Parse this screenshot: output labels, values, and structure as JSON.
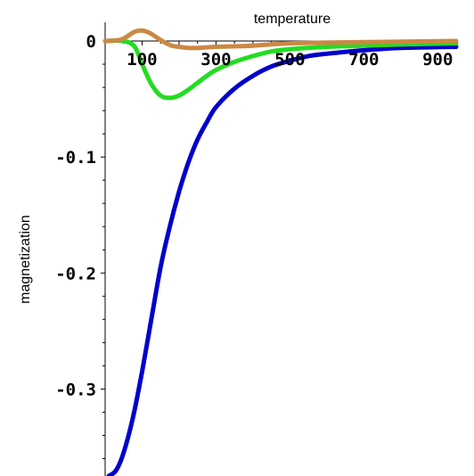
{
  "chart_data": {
    "type": "line",
    "title": "",
    "xlabel": "temperature",
    "ylabel": "magnetization",
    "xlim": [
      0,
      950
    ],
    "ylim": [
      -0.375,
      0.01
    ],
    "grid": false,
    "legend": "none",
    "x_ticks": [
      100,
      300,
      500,
      700,
      900
    ],
    "x_tick_labels": [
      "100",
      "300",
      "500",
      "700",
      "900"
    ],
    "y_ticks": [
      0,
      -0.1,
      -0.2,
      -0.3
    ],
    "y_tick_labels": [
      "0",
      "-0.1",
      "-0.2",
      "-0.3"
    ],
    "series": [
      {
        "color": "#0000cc",
        "x": [
          10,
          30,
          50,
          75,
          100,
          125,
          150,
          175,
          200,
          225,
          250,
          275,
          300,
          350,
          400,
          450,
          500,
          550,
          600,
          700,
          800,
          950
        ],
        "y": [
          -0.375,
          -0.37,
          -0.355,
          -0.325,
          -0.285,
          -0.24,
          -0.195,
          -0.16,
          -0.13,
          -0.105,
          -0.085,
          -0.07,
          -0.057,
          -0.041,
          -0.03,
          -0.022,
          -0.017,
          -0.013,
          -0.011,
          -0.008,
          -0.006,
          -0.005
        ]
      },
      {
        "color": "#22dd22",
        "x": [
          0,
          50,
          80,
          100,
          125,
          150,
          175,
          200,
          225,
          250,
          275,
          300,
          350,
          400,
          450,
          500,
          600,
          700,
          800,
          950
        ],
        "y": [
          0,
          0,
          -0.005,
          -0.02,
          -0.037,
          -0.047,
          -0.049,
          -0.047,
          -0.042,
          -0.036,
          -0.03,
          -0.025,
          -0.018,
          -0.013,
          -0.009,
          -0.007,
          -0.005,
          -0.004,
          -0.003,
          -0.002
        ]
      },
      {
        "color": "#cc8844",
        "x": [
          0,
          40,
          60,
          80,
          100,
          120,
          140,
          160,
          180,
          200,
          225,
          250,
          300,
          400,
          500,
          700,
          950
        ],
        "y": [
          0,
          0.001,
          0.004,
          0.008,
          0.009,
          0.007,
          0.003,
          -0.001,
          -0.004,
          -0.005,
          -0.006,
          -0.006,
          -0.005,
          -0.004,
          -0.002,
          -0.001,
          0
        ]
      }
    ]
  }
}
